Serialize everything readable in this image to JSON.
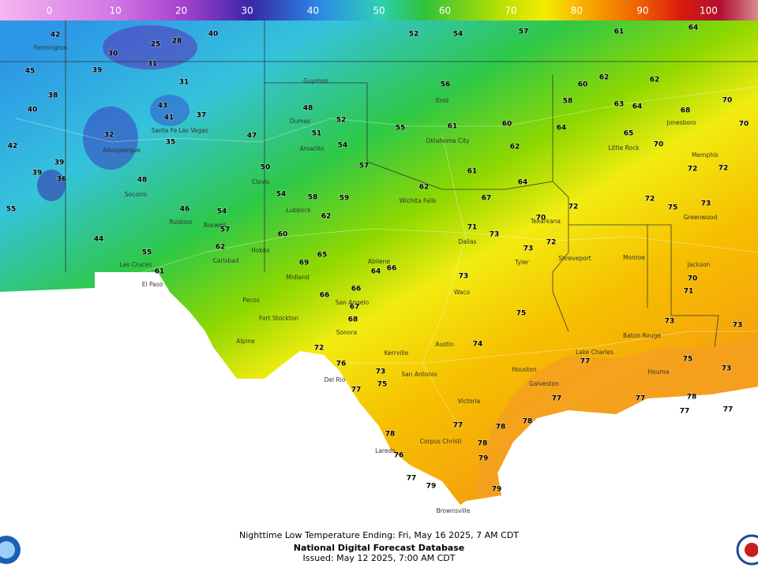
{
  "colorbar": {
    "lim": [
      -7.5,
      107.5
    ],
    "ticks": [
      0,
      10,
      20,
      30,
      40,
      50,
      60,
      70,
      80,
      90,
      100
    ]
  },
  "footer": {
    "title": "Nighttime Low Temperature Ending: Fri, May 16 2025, 7 AM CDT",
    "source": "National Digital Forecast Database",
    "issued": "Issued: May 12 2025, 7:00 AM CDT"
  },
  "temperatures": [
    42,
    30,
    25,
    28,
    40,
    39,
    31,
    45,
    38,
    40,
    31,
    43,
    41,
    35,
    37,
    42,
    32,
    39,
    36,
    39,
    48,
    46,
    44,
    55,
    61,
    55,
    54,
    57,
    62,
    47,
    50,
    54,
    58,
    59,
    60,
    62,
    48,
    52,
    51,
    54,
    57,
    55,
    61,
    60,
    56,
    52,
    54,
    57,
    61,
    64,
    58,
    64,
    62,
    61,
    62,
    64,
    67,
    70,
    69,
    65,
    66,
    66,
    68,
    67,
    64,
    66,
    71,
    73,
    73,
    72,
    75,
    73,
    74,
    72,
    76,
    77,
    73,
    75,
    78,
    76,
    77,
    79,
    79,
    79,
    78,
    77,
    78,
    78,
    77,
    77,
    77,
    77,
    77,
    73,
    78,
    73,
    75,
    72,
    72,
    75,
    73,
    72,
    72,
    70,
    68,
    70,
    70,
    65,
    71,
    70,
    73,
    63,
    64,
    60,
    62,
    62
  ],
  "cities": [
    "Farmington",
    "Albuquerque",
    "Santa Fe",
    "Las Vegas",
    "Socorro",
    "Ruidoso",
    "Roswell",
    "Las Cruces",
    "El Paso",
    "Carlsbad",
    "Hobbs",
    "Clovis",
    "Amarillo",
    "Dumas",
    "Guymon",
    "Lubbock",
    "Midland",
    "Pecos",
    "Fort Stockton",
    "Alpine",
    "San Angelo",
    "Sonora",
    "Abilene",
    "Wichita Falls",
    "Enid",
    "Oklahoma City",
    "Dallas",
    "Tyler",
    "Texarkana",
    "Shreveport",
    "Waco",
    "Austin",
    "San Antonio",
    "Kerrville",
    "Del Rio",
    "Laredo",
    "Corpus Christi",
    "Victoria",
    "Houston",
    "Galveston",
    "Brownsville",
    "Lake Charles",
    "Baton Rouge",
    "Houma",
    "Monroe",
    "Little Rock",
    "Jonesboro",
    "Memphis",
    "Greenwood",
    "Jackson"
  ]
}
